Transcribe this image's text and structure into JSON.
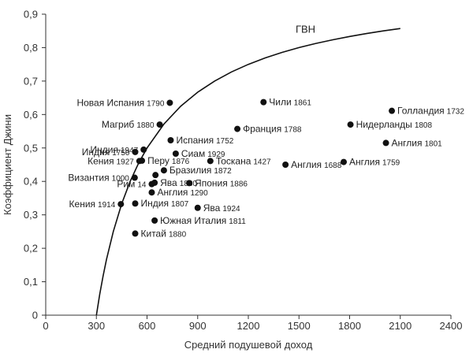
{
  "chart_data": {
    "type": "scatter",
    "xlabel": "Средний подушевой доход",
    "ylabel": "Коэффициент Джини",
    "xlim": [
      0,
      2400
    ],
    "ylim": [
      0,
      0.9
    ],
    "x_ticks": [
      0,
      300,
      600,
      900,
      1200,
      1500,
      1800,
      2100,
      2400
    ],
    "y_ticks": [
      0,
      0.1,
      0.2,
      0.3,
      0.4,
      0.5,
      0.6,
      0.7,
      0.8,
      0.9
    ],
    "x_tick_labels": [
      "0",
      "300",
      "600",
      "900",
      "1200",
      "1500",
      "1800",
      "2100",
      "2400"
    ],
    "y_tick_labels": [
      "0",
      "0,1",
      "0,2",
      "0,3",
      "0,4",
      "0,5",
      "0,6",
      "0,7",
      "0,8",
      "0,9"
    ],
    "curve": {
      "name": "ГВН",
      "subsistence": 300,
      "points": [
        [
          300,
          0
        ],
        [
          320,
          0.0625
        ],
        [
          340,
          0.1176
        ],
        [
          360,
          0.1667
        ],
        [
          400,
          0.25
        ],
        [
          450,
          0.3333
        ],
        [
          500,
          0.4
        ],
        [
          550,
          0.4545
        ],
        [
          600,
          0.5
        ],
        [
          700,
          0.5714
        ],
        [
          800,
          0.625
        ],
        [
          900,
          0.6667
        ],
        [
          1000,
          0.7
        ],
        [
          1100,
          0.7273
        ],
        [
          1200,
          0.75
        ],
        [
          1300,
          0.7692
        ],
        [
          1400,
          0.7857
        ],
        [
          1500,
          0.8
        ],
        [
          1600,
          0.8125
        ],
        [
          1700,
          0.8235
        ],
        [
          1800,
          0.8333
        ],
        [
          1900,
          0.8421
        ],
        [
          2000,
          0.85
        ],
        [
          2100,
          0.8571
        ]
      ]
    },
    "points": [
      {
        "name": "Новая Испания",
        "year": "1790",
        "x": 735,
        "y": 0.635,
        "label_side": "left"
      },
      {
        "name": "Магриб",
        "year": "1880",
        "x": 675,
        "y": 0.57,
        "label_side": "left"
      },
      {
        "name": "Индия",
        "year": "1947",
        "x": 580,
        "y": 0.495,
        "label_side": "left"
      },
      {
        "name": "Индия",
        "year": "1750",
        "x": 530,
        "y": 0.488,
        "label_side": "left"
      },
      {
        "name": "Испания",
        "year": "1752",
        "x": 740,
        "y": 0.523,
        "label_side": "right"
      },
      {
        "name": "Сиам",
        "year": "1929",
        "x": 770,
        "y": 0.483,
        "label_side": "right"
      },
      {
        "name": "Кения",
        "year": "1927",
        "x": 555,
        "y": 0.461,
        "label_side": "left"
      },
      {
        "name": "Перу",
        "year": "1876",
        "x": 570,
        "y": 0.462,
        "label_side": "right"
      },
      {
        "name": "Византия",
        "year": "1000",
        "x": 527,
        "y": 0.411,
        "label_side": "left"
      },
      {
        "name": "Бразилия",
        "year": "1872",
        "x": 700,
        "y": 0.433,
        "label_side": "right"
      },
      {
        "name": "Рим",
        "year": "14",
        "x": 628,
        "y": 0.392,
        "label_side": "left"
      },
      {
        "name": "Ява",
        "year": "1880",
        "x": 645,
        "y": 0.396,
        "label_side": "right"
      },
      {
        "name": "Ява",
        "year": "",
        "x": 650,
        "y": 0.419,
        "label_side": "none"
      },
      {
        "name": "Англия",
        "year": "1290",
        "x": 628,
        "y": 0.367,
        "label_side": "right"
      },
      {
        "name": "Япония",
        "year": "1886",
        "x": 850,
        "y": 0.395,
        "label_side": "right"
      },
      {
        "name": "Кения",
        "year": "1914",
        "x": 445,
        "y": 0.332,
        "label_side": "left"
      },
      {
        "name": "Индия",
        "year": "1807",
        "x": 530,
        "y": 0.334,
        "label_side": "right"
      },
      {
        "name": "Ява",
        "year": "1924",
        "x": 900,
        "y": 0.321,
        "label_side": "right"
      },
      {
        "name": "Южная Италия",
        "year": "1811",
        "x": 645,
        "y": 0.283,
        "label_side": "right"
      },
      {
        "name": "Китай",
        "year": "1880",
        "x": 530,
        "y": 0.244,
        "label_side": "right"
      },
      {
        "name": "Чили",
        "year": "1861",
        "x": 1290,
        "y": 0.637,
        "label_side": "right"
      },
      {
        "name": "Франция",
        "year": "1788",
        "x": 1135,
        "y": 0.557,
        "label_side": "right"
      },
      {
        "name": "Тоскана",
        "year": "1427",
        "x": 975,
        "y": 0.461,
        "label_side": "right"
      },
      {
        "name": "Англия",
        "year": "1688",
        "x": 1420,
        "y": 0.45,
        "label_side": "right"
      },
      {
        "name": "Англия",
        "year": "1759",
        "x": 1765,
        "y": 0.458,
        "label_side": "right"
      },
      {
        "name": "Голландия",
        "year": "1732",
        "x": 2050,
        "y": 0.611,
        "label_side": "right"
      },
      {
        "name": "Нидерланды",
        "year": "1808",
        "x": 1805,
        "y": 0.57,
        "label_side": "right"
      },
      {
        "name": "Англия",
        "year": "1801",
        "x": 2015,
        "y": 0.515,
        "label_side": "right"
      }
    ]
  }
}
